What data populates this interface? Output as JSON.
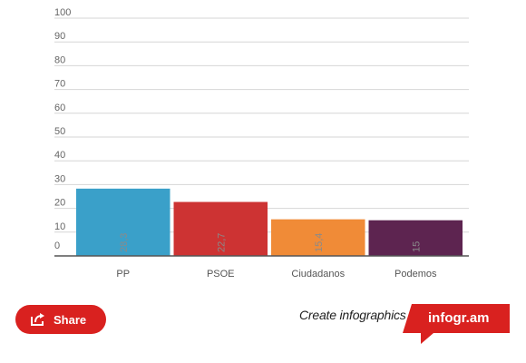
{
  "chart_data": {
    "type": "bar",
    "categories": [
      "PP",
      "PSOE",
      "Ciudadanos",
      "Podemos"
    ],
    "values": [
      28.3,
      22.7,
      15.4,
      15
    ],
    "value_labels": [
      "28,3",
      "22,7",
      "15,4",
      "15"
    ],
    "colors": [
      "#3aa0c9",
      "#cd3333",
      "#f08b37",
      "#5d2450"
    ],
    "ylim": [
      0,
      100
    ],
    "yticks": [
      0,
      10,
      20,
      30,
      40,
      50,
      60,
      70,
      80,
      90,
      100
    ],
    "grid": true,
    "title": "",
    "xlabel": "",
    "ylabel": ""
  },
  "footer": {
    "share_label": "Share",
    "share_icon": "share-icon",
    "create_text": "Create infographics",
    "brand_label": "infogr.am",
    "brand_color": "#d9211f"
  }
}
